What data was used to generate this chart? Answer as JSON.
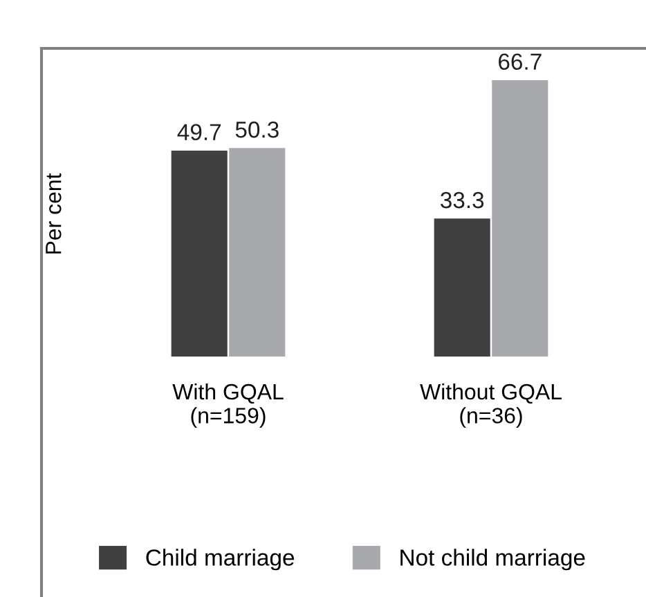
{
  "chart_data": {
    "type": "bar",
    "ylabel": "Per cent",
    "categories": [
      "With GQAL\n(n=159)",
      "Without GQAL\n(n=36)"
    ],
    "series": [
      {
        "name": "Child marriage",
        "color": "#404041",
        "values": [
          49.7,
          33.3
        ]
      },
      {
        "name": "Not child marriage",
        "color": "#a7a9ac",
        "values": [
          50.3,
          66.7
        ]
      }
    ],
    "data_labels": true,
    "tick_labels": "x",
    "grid": false,
    "legend": "bottom"
  }
}
